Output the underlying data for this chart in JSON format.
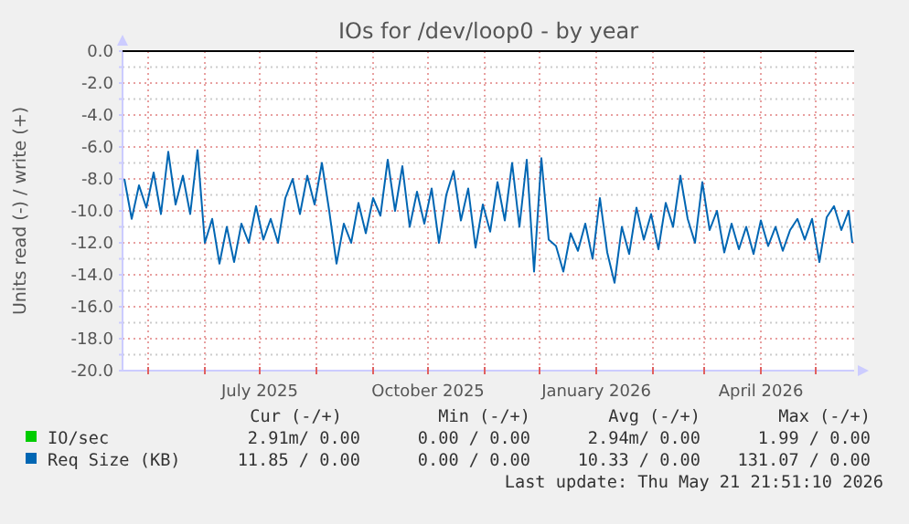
{
  "chart_data": {
    "type": "line",
    "title": "IOs for /dev/loop0 - by year",
    "ylabel": "Units read (-) / write (+)",
    "xlim": [
      "2025-04-17",
      "2026-05-22"
    ],
    "xticks": [
      {
        "value": "2025-05-01",
        "label": null
      },
      {
        "value": "2025-06-01",
        "label": null
      },
      {
        "value": "2025-07-01",
        "label": "July 2025"
      },
      {
        "value": "2025-08-01",
        "label": null
      },
      {
        "value": "2025-09-01",
        "label": null
      },
      {
        "value": "2025-10-01",
        "label": "October 2025"
      },
      {
        "value": "2025-11-01",
        "label": null
      },
      {
        "value": "2025-12-01",
        "label": null
      },
      {
        "value": "2026-01-01",
        "label": "January 2026"
      },
      {
        "value": "2026-02-01",
        "label": null
      },
      {
        "value": "2026-03-01",
        "label": null
      },
      {
        "value": "2026-04-01",
        "label": "April 2026"
      },
      {
        "value": "2026-05-01",
        "label": null
      }
    ],
    "ylim": [
      -20,
      0
    ],
    "yticks": [
      {
        "value": 0,
        "label": "0.0"
      },
      {
        "value": -1,
        "label": null
      },
      {
        "value": -2,
        "label": "-2.0"
      },
      {
        "value": -3,
        "label": null
      },
      {
        "value": -4,
        "label": "-4.0"
      },
      {
        "value": -5,
        "label": null
      },
      {
        "value": -6,
        "label": "-6.0"
      },
      {
        "value": -7,
        "label": null
      },
      {
        "value": -8,
        "label": "-8.0"
      },
      {
        "value": -9,
        "label": null
      },
      {
        "value": -10,
        "label": "-10.0"
      },
      {
        "value": -11,
        "label": null
      },
      {
        "value": -12,
        "label": "-12.0"
      },
      {
        "value": -13,
        "label": null
      },
      {
        "value": -14,
        "label": "-14.0"
      },
      {
        "value": -15,
        "label": null
      },
      {
        "value": -16,
        "label": "-16.0"
      },
      {
        "value": -17,
        "label": null
      },
      {
        "value": -18,
        "label": "-18.0"
      },
      {
        "value": -19,
        "label": null
      },
      {
        "value": -20,
        "label": "-20.0"
      }
    ],
    "grid": true,
    "legend": "bottom",
    "ref_lines": [
      {
        "axis": "y",
        "value": 0,
        "color": "#000000"
      }
    ],
    "x": [
      "2025-04-18",
      "2025-04-22",
      "2025-04-26",
      "2025-04-30",
      "2025-05-04",
      "2025-05-08",
      "2025-05-12",
      "2025-05-16",
      "2025-05-20",
      "2025-05-24",
      "2025-05-28",
      "2025-06-01",
      "2025-06-05",
      "2025-06-09",
      "2025-06-13",
      "2025-06-17",
      "2025-06-21",
      "2025-06-25",
      "2025-06-29",
      "2025-07-03",
      "2025-07-07",
      "2025-07-11",
      "2025-07-15",
      "2025-07-19",
      "2025-07-23",
      "2025-07-27",
      "2025-07-31",
      "2025-08-04",
      "2025-08-08",
      "2025-08-12",
      "2025-08-16",
      "2025-08-20",
      "2025-08-24",
      "2025-08-28",
      "2025-09-01",
      "2025-09-05",
      "2025-09-09",
      "2025-09-13",
      "2025-09-17",
      "2025-09-21",
      "2025-09-25",
      "2025-09-29",
      "2025-10-03",
      "2025-10-07",
      "2025-10-11",
      "2025-10-15",
      "2025-10-19",
      "2025-10-23",
      "2025-10-27",
      "2025-10-31",
      "2025-11-04",
      "2025-11-08",
      "2025-11-12",
      "2025-11-16",
      "2025-11-20",
      "2025-11-24",
      "2025-11-28",
      "2025-12-02",
      "2025-12-06",
      "2025-12-10",
      "2025-12-14",
      "2025-12-18",
      "2025-12-22",
      "2025-12-26",
      "2025-12-30",
      "2026-01-03",
      "2026-01-07",
      "2026-01-11",
      "2026-01-15",
      "2026-01-19",
      "2026-01-23",
      "2026-01-27",
      "2026-01-31",
      "2026-02-04",
      "2026-02-08",
      "2026-02-12",
      "2026-02-16",
      "2026-02-20",
      "2026-02-24",
      "2026-02-28",
      "2026-03-04",
      "2026-03-08",
      "2026-03-12",
      "2026-03-16",
      "2026-03-20",
      "2026-03-24",
      "2026-03-28",
      "2026-04-01",
      "2026-04-05",
      "2026-04-09",
      "2026-04-13",
      "2026-04-17",
      "2026-04-21",
      "2026-04-25",
      "2026-04-29",
      "2026-05-03",
      "2026-05-07",
      "2026-05-11",
      "2026-05-15",
      "2026-05-19",
      "2026-05-21"
    ],
    "series": [
      {
        "name": "IO/sec",
        "color": "#00cc00",
        "values": [
          null,
          null,
          null,
          null,
          null,
          null,
          null,
          null,
          null,
          null,
          null,
          null,
          null,
          null,
          null,
          null,
          null,
          null,
          null,
          null,
          null,
          null,
          null,
          null,
          null,
          null,
          null,
          null,
          null,
          null,
          null,
          null,
          null,
          null,
          null,
          null,
          null,
          null,
          null,
          null,
          null,
          null,
          null,
          null,
          null,
          null,
          null,
          null,
          null,
          null,
          null,
          null,
          null,
          null,
          null,
          null,
          null,
          null,
          null,
          null,
          null,
          null,
          null,
          null,
          null,
          null,
          null,
          null,
          null,
          null,
          null,
          null,
          null,
          null,
          null,
          null,
          null,
          null,
          null,
          null,
          null,
          null,
          null,
          null,
          null,
          null,
          null,
          null,
          null,
          null,
          null,
          null,
          null,
          null,
          null,
          null,
          null,
          null,
          null,
          null,
          null
        ]
      },
      {
        "name": "Req Size (KB)",
        "color": "#0066b3",
        "values": [
          -8.0,
          -10.5,
          -8.4,
          -9.8,
          -7.6,
          -10.2,
          -6.3,
          -9.6,
          -7.8,
          -10.2,
          -6.2,
          -12.0,
          -10.5,
          -13.3,
          -11.0,
          -13.2,
          -10.8,
          -12.0,
          -9.7,
          -11.8,
          -10.5,
          -12.0,
          -9.2,
          -8.0,
          -10.2,
          -7.8,
          -9.6,
          -7.0,
          -10.0,
          -13.3,
          -10.8,
          -12.0,
          -9.5,
          -11.4,
          -9.2,
          -10.3,
          -6.8,
          -10.0,
          -7.2,
          -11.0,
          -8.8,
          -10.8,
          -8.6,
          -12.0,
          -9.0,
          -7.5,
          -10.6,
          -8.6,
          -12.3,
          -9.6,
          -11.3,
          -8.2,
          -10.6,
          -7.0,
          -11.0,
          -6.8,
          -13.8,
          -6.7,
          -11.8,
          -12.2,
          -13.8,
          -11.4,
          -12.5,
          -10.8,
          -13.0,
          -9.2,
          -12.6,
          -14.5,
          -11.0,
          -12.7,
          -9.8,
          -11.8,
          -10.2,
          -12.4,
          -9.5,
          -11.0,
          -7.8,
          -10.5,
          -12.0,
          -8.2,
          -11.2,
          -10.0,
          -12.6,
          -10.8,
          -12.4,
          -11.0,
          -12.7,
          -10.6,
          -12.2,
          -11.0,
          -12.5,
          -11.2,
          -10.5,
          -11.8,
          -10.5,
          -13.2,
          -10.4,
          -9.7,
          -11.2,
          -10.0,
          -12.0
        ]
      }
    ],
    "annotations": [
      "Cur (-/+)",
      "Min (-/+)",
      "Avg (-/+)",
      "Max (-/+)",
      "2.91m/ 0.00",
      "0.00 / 0.00",
      "2.94m/ 0.00",
      "1.99 / 0.00",
      "11.85 / 0.00",
      "0.00 / 0.00",
      "10.33 / 0.00",
      "131.07 / 0.00",
      "Last update: Thu May 21 21:51:10 2026"
    ]
  }
}
